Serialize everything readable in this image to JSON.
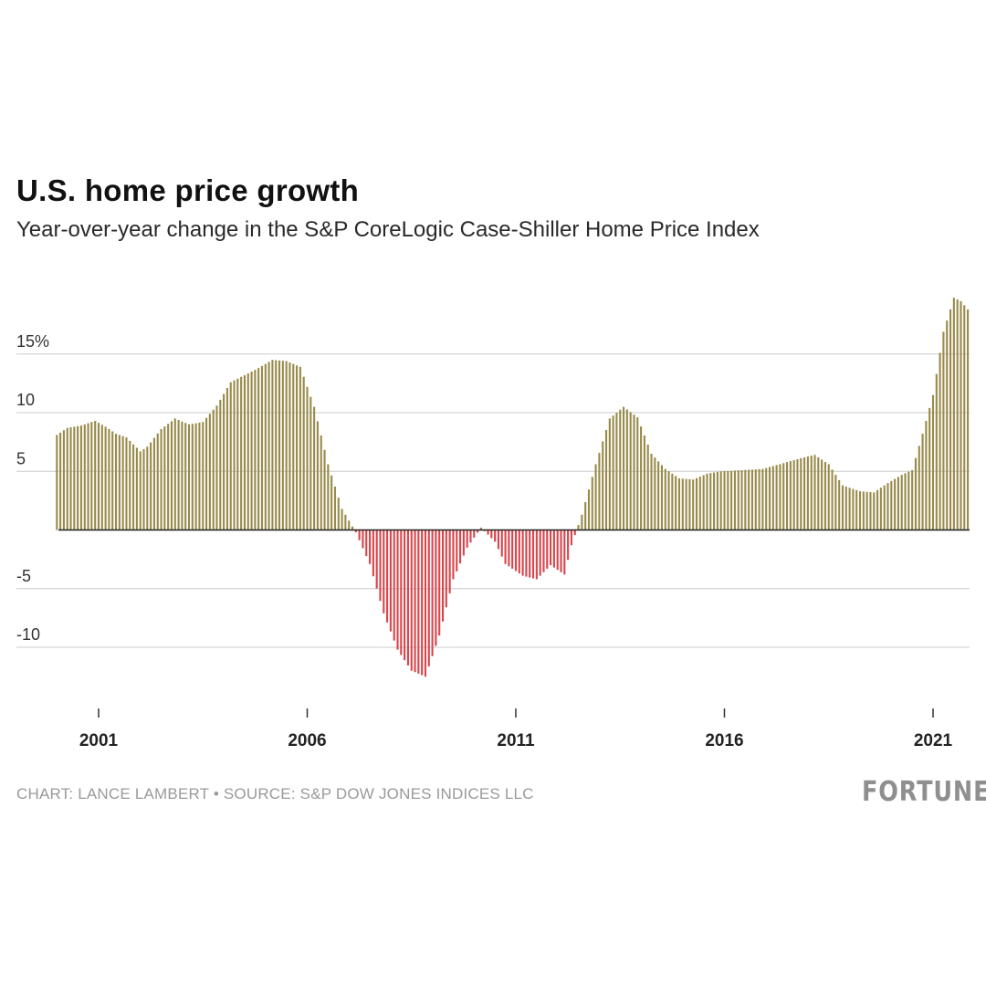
{
  "header": {
    "title": "U.S. home price growth",
    "subtitle": "Year-over-year change in the S&P CoreLogic Case-Shiller Home Price Index"
  },
  "footer": {
    "credit": "CHART: LANCE LAMBERT • SOURCE: S&P DOW JONES INDICES LLC",
    "logo": "FORTUNE"
  },
  "colors": {
    "positive": "#978a4a",
    "negative": "#d9444a",
    "grid": "#cccccc",
    "zero": "#222222"
  },
  "chart_data": {
    "type": "bar",
    "title": "U.S. home price growth",
    "subtitle": "Year-over-year change in the S&P CoreLogic Case-Shiller Home Price Index",
    "x_range": [
      "2000-01",
      "2021-06"
    ],
    "ylim": [
      -14,
      20
    ],
    "y_ticks": [
      {
        "value": 15,
        "label": "15%"
      },
      {
        "value": 10,
        "label": "10"
      },
      {
        "value": 5,
        "label": "5"
      },
      {
        "value": -5,
        "label": "-5"
      },
      {
        "value": -10,
        "label": "-10"
      }
    ],
    "x_ticks": [
      {
        "year": 2001,
        "label": "2001"
      },
      {
        "year": 2006,
        "label": "2006"
      },
      {
        "year": 2011,
        "label": "2011"
      },
      {
        "year": 2016,
        "label": "2016"
      },
      {
        "year": 2021,
        "label": "2021"
      }
    ],
    "grid": true,
    "anchors": [
      [
        "2000-01",
        8.1
      ],
      [
        "2000-04",
        8.7
      ],
      [
        "2000-08",
        8.9
      ],
      [
        "2000-12",
        9.3
      ],
      [
        "2001-03",
        8.8
      ],
      [
        "2001-06",
        8.2
      ],
      [
        "2001-09",
        7.9
      ],
      [
        "2002-01",
        6.7
      ],
      [
        "2002-03",
        7.1
      ],
      [
        "2002-07",
        8.6
      ],
      [
        "2002-11",
        9.5
      ],
      [
        "2003-03",
        9.0
      ],
      [
        "2003-07",
        9.2
      ],
      [
        "2003-11",
        10.6
      ],
      [
        "2004-03",
        12.6
      ],
      [
        "2004-07",
        13.2
      ],
      [
        "2004-11",
        13.8
      ],
      [
        "2005-03",
        14.5
      ],
      [
        "2005-07",
        14.4
      ],
      [
        "2005-11",
        13.9
      ],
      [
        "2006-03",
        10.5
      ],
      [
        "2006-07",
        5.6
      ],
      [
        "2006-11",
        1.8
      ],
      [
        "2007-03",
        -0.2
      ],
      [
        "2007-07",
        -2.9
      ],
      [
        "2007-11",
        -7.1
      ],
      [
        "2008-03",
        -10.2
      ],
      [
        "2008-07",
        -12.0
      ],
      [
        "2008-11",
        -12.5
      ],
      [
        "2009-03",
        -9.0
      ],
      [
        "2009-07",
        -4.2
      ],
      [
        "2009-11",
        -1.5
      ],
      [
        "2010-03",
        0.2
      ],
      [
        "2010-07",
        -1.0
      ],
      [
        "2010-10",
        -2.9
      ],
      [
        "2011-03",
        -3.9
      ],
      [
        "2011-07",
        -4.2
      ],
      [
        "2011-11",
        -3.0
      ],
      [
        "2012-03",
        -3.8
      ],
      [
        "2012-05",
        -1.3
      ],
      [
        "2012-08",
        1.3
      ],
      [
        "2012-12",
        5.6
      ],
      [
        "2013-04",
        9.5
      ],
      [
        "2013-08",
        10.5
      ],
      [
        "2013-12",
        9.6
      ],
      [
        "2014-04",
        6.5
      ],
      [
        "2014-08",
        5.2
      ],
      [
        "2014-12",
        4.4
      ],
      [
        "2015-04",
        4.3
      ],
      [
        "2015-08",
        4.8
      ],
      [
        "2015-12",
        5.0
      ],
      [
        "2016-06",
        5.1
      ],
      [
        "2016-12",
        5.2
      ],
      [
        "2017-06",
        5.7
      ],
      [
        "2017-12",
        6.2
      ],
      [
        "2018-03",
        6.4
      ],
      [
        "2018-07",
        5.6
      ],
      [
        "2018-11",
        3.8
      ],
      [
        "2019-04",
        3.3
      ],
      [
        "2019-08",
        3.2
      ],
      [
        "2019-12",
        4.0
      ],
      [
        "2020-04",
        4.7
      ],
      [
        "2020-07",
        5.1
      ],
      [
        "2020-10",
        8.2
      ],
      [
        "2021-01",
        11.5
      ],
      [
        "2021-04",
        16.9
      ],
      [
        "2021-06",
        18.8
      ],
      [
        "2021-07",
        19.8
      ],
      [
        "2021-09",
        19.5
      ],
      [
        "2021-11",
        18.8
      ]
    ]
  }
}
